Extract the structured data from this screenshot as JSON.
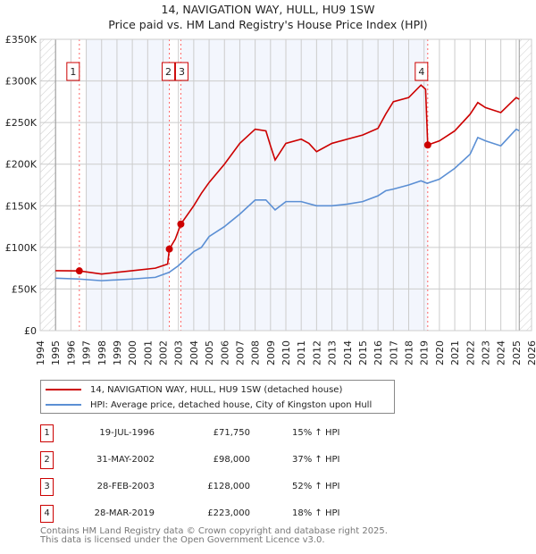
{
  "title": "14, NAVIGATION WAY, HULL, HU9 1SW",
  "subtitle": "Price paid vs. HM Land Registry's House Price Index (HPI)",
  "chart_data": {
    "type": "line",
    "title": "14, NAVIGATION WAY, HULL, HU9 1SW — Price paid vs. HM Land Registry's House Price Index (HPI)",
    "xlim": [
      1994,
      2026
    ],
    "ylim": [
      0,
      350000
    ],
    "x_ticks": [
      "1994",
      "1995",
      "1996",
      "1997",
      "1998",
      "1999",
      "2000",
      "2001",
      "2002",
      "2003",
      "2004",
      "2005",
      "2006",
      "2007",
      "2008",
      "2009",
      "2010",
      "2011",
      "2012",
      "2013",
      "2014",
      "2015",
      "2016",
      "2017",
      "2018",
      "2019",
      "2020",
      "2021",
      "2022",
      "2023",
      "2024",
      "2025",
      "2026"
    ],
    "y_ticks": [
      {
        "v": 0,
        "label": "£0"
      },
      {
        "v": 50000,
        "label": "£50K"
      },
      {
        "v": 100000,
        "label": "£100K"
      },
      {
        "v": 150000,
        "label": "£150K"
      },
      {
        "v": 200000,
        "label": "£200K"
      },
      {
        "v": 250000,
        "label": "£250K"
      },
      {
        "v": 300000,
        "label": "£300K"
      },
      {
        "v": 350000,
        "label": "£350K"
      }
    ],
    "grid": true,
    "series": [
      {
        "name": "14, NAVIGATION WAY, HULL, HU9 1SW (detached house)",
        "color": "#cc0000",
        "x": [
          1995,
          1996.55,
          1998,
          2000,
          2001.5,
          2002.3,
          2002.41,
          2002.8,
          2003.16,
          2004,
          2004.5,
          2005,
          2006,
          2007,
          2008,
          2008.7,
          2009.0,
          2009.3,
          2010,
          2011,
          2011.5,
          2012,
          2013,
          2014,
          2015,
          2016,
          2016.5,
          2017,
          2018,
          2018.8,
          2019.1,
          2019.24,
          2020,
          2021,
          2022,
          2022.5,
          2023,
          2024,
          2025,
          2025.2
        ],
        "y": [
          72000,
          71750,
          68000,
          72000,
          75000,
          80000,
          98000,
          110000,
          128000,
          150000,
          165000,
          178000,
          200000,
          225000,
          242000,
          240000,
          222000,
          205000,
          225000,
          230000,
          225000,
          215000,
          225000,
          230000,
          235000,
          243000,
          260000,
          275000,
          280000,
          295000,
          290000,
          223000,
          228000,
          240000,
          260000,
          274000,
          268000,
          262000,
          280000,
          278000
        ]
      },
      {
        "name": "HPI: Average price, detached house, City of Kingston upon Hull",
        "color": "#5b8fd4",
        "x": [
          1995,
          1996.5,
          1998,
          2000,
          2001.5,
          2002.4,
          2003,
          2004,
          2004.5,
          2005,
          2006,
          2007,
          2008,
          2008.7,
          2009.3,
          2010,
          2011,
          2012,
          2013,
          2014,
          2015,
          2016,
          2016.5,
          2017,
          2018,
          2018.8,
          2019.2,
          2020,
          2021,
          2022,
          2022.5,
          2023,
          2024,
          2025,
          2025.2
        ],
        "y": [
          63000,
          62000,
          60000,
          62000,
          64000,
          70000,
          78000,
          95000,
          100000,
          113000,
          125000,
          140000,
          157000,
          157000,
          145000,
          155000,
          155000,
          150000,
          150000,
          152000,
          155000,
          162000,
          168000,
          170000,
          175000,
          180000,
          177000,
          182000,
          195000,
          212000,
          232000,
          228000,
          222000,
          242000,
          240000
        ]
      }
    ],
    "sales": [
      {
        "n": "1",
        "x": 1996.55,
        "y": 71750
      },
      {
        "n": "2",
        "x": 2002.41,
        "y": 98000
      },
      {
        "n": "3",
        "x": 2003.16,
        "y": 128000
      },
      {
        "n": "4",
        "x": 2019.24,
        "y": 223000
      }
    ]
  },
  "legend": {
    "property": "14, NAVIGATION WAY, HULL, HU9 1SW (detached house)",
    "hpi": "HPI: Average price, detached house, City of Kingston upon Hull"
  },
  "table": [
    {
      "n": "1",
      "date": "19-JUL-1996",
      "price": "£71,750",
      "hpi": "15% ↑ HPI"
    },
    {
      "n": "2",
      "date": "31-MAY-2002",
      "price": "£98,000",
      "hpi": "37% ↑ HPI"
    },
    {
      "n": "3",
      "date": "28-FEB-2003",
      "price": "£128,000",
      "hpi": "52% ↑ HPI"
    },
    {
      "n": "4",
      "date": "28-MAR-2019",
      "price": "£223,000",
      "hpi": "18% ↑ HPI"
    }
  ],
  "footer": {
    "line1": "Contains HM Land Registry data © Crown copyright and database right 2025.",
    "line2": "This data is licensed under the Open Government Licence v3.0."
  }
}
